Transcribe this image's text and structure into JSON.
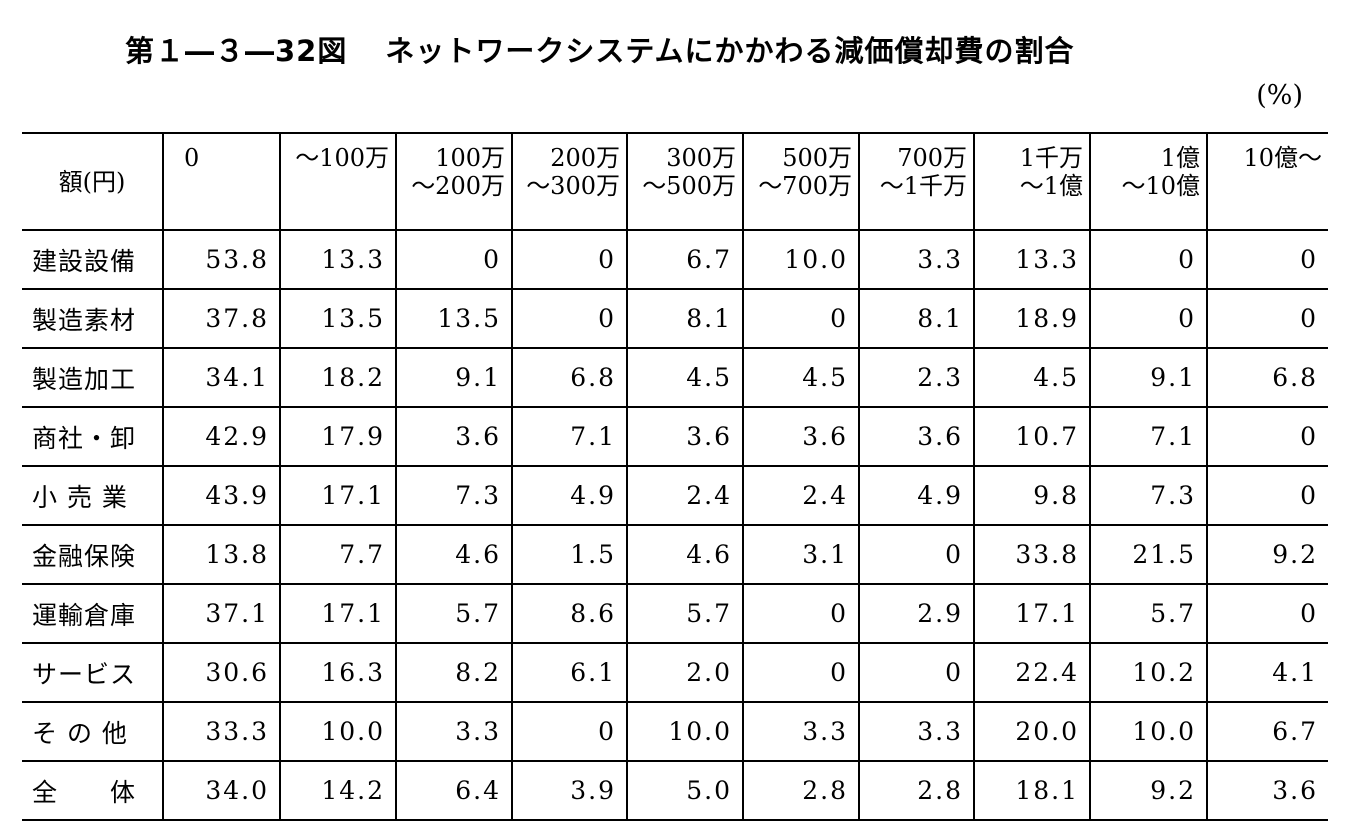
{
  "title": {
    "number": "第１―３―32図",
    "text": "ネットワークシステムにかかわる減価償却費の割合"
  },
  "unit": "(%)",
  "table": {
    "corner_header": "額(円)",
    "columns": [
      "0",
      "～100万",
      "100万\n～200万",
      "200万\n～300万",
      "300万\n～500万",
      "500万\n～700万",
      "700万\n～1千万",
      "1千万\n～1億",
      "1億\n～10億",
      "10億～"
    ],
    "rows": [
      {
        "label": "建設設備",
        "values": [
          "53.8",
          "13.3",
          "0",
          "0",
          "6.7",
          "10.0",
          "3.3",
          "13.3",
          "0",
          "0"
        ]
      },
      {
        "label": "製造素材",
        "values": [
          "37.8",
          "13.5",
          "13.5",
          "0",
          "8.1",
          "0",
          "8.1",
          "18.9",
          "0",
          "0"
        ]
      },
      {
        "label": "製造加工",
        "values": [
          "34.1",
          "18.2",
          "9.1",
          "6.8",
          "4.5",
          "4.5",
          "2.3",
          "4.5",
          "9.1",
          "6.8"
        ]
      },
      {
        "label": "商社・卸",
        "values": [
          "42.9",
          "17.9",
          "3.6",
          "7.1",
          "3.6",
          "3.6",
          "3.6",
          "10.7",
          "7.1",
          "0"
        ]
      },
      {
        "label": "小 売 業",
        "values": [
          "43.9",
          "17.1",
          "7.3",
          "4.9",
          "2.4",
          "2.4",
          "4.9",
          "9.8",
          "7.3",
          "0"
        ]
      },
      {
        "label": "金融保険",
        "values": [
          "13.8",
          "7.7",
          "4.6",
          "1.5",
          "4.6",
          "3.1",
          "0",
          "33.8",
          "21.5",
          "9.2"
        ]
      },
      {
        "label": "運輸倉庫",
        "values": [
          "37.1",
          "17.1",
          "5.7",
          "8.6",
          "5.7",
          "0",
          "2.9",
          "17.1",
          "5.7",
          "0"
        ]
      },
      {
        "label": "サービス",
        "values": [
          "30.6",
          "16.3",
          "8.2",
          "6.1",
          "2.0",
          "0",
          "0",
          "22.4",
          "10.2",
          "4.1"
        ]
      },
      {
        "label": "そ の 他",
        "values": [
          "33.3",
          "10.0",
          "3.3",
          "0",
          "10.0",
          "3.3",
          "3.3",
          "20.0",
          "10.0",
          "6.7"
        ]
      },
      {
        "label": "全　　体",
        "values": [
          "34.0",
          "14.2",
          "6.4",
          "3.9",
          "5.0",
          "2.8",
          "2.8",
          "18.1",
          "9.2",
          "3.6"
        ]
      }
    ]
  }
}
